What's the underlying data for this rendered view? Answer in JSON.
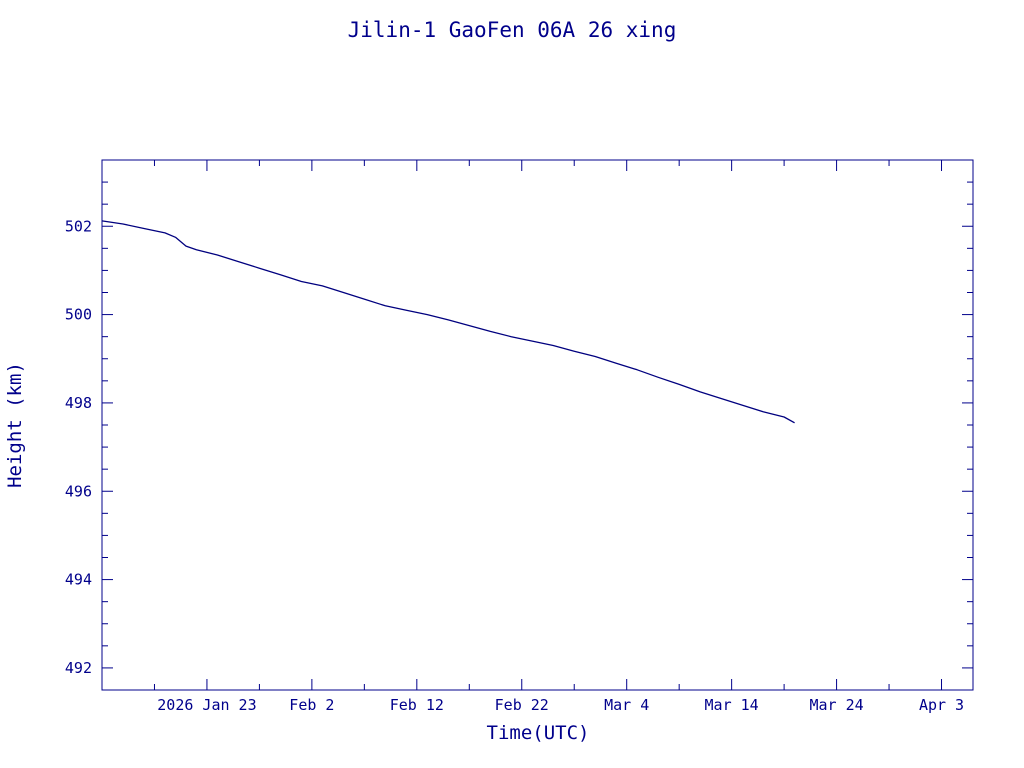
{
  "chart_data": {
    "type": "line",
    "title": "Jilin-1 GaoFen 06A 26 xing",
    "xlabel": "Time(UTC)",
    "ylabel": "Height (km)",
    "colors": {
      "line": "#00007f",
      "axis": "#00008b",
      "text": "#00008b"
    },
    "grid": false,
    "legend": "none",
    "xlim": [
      "2026-01-13",
      "2026-04-06"
    ],
    "ylim": [
      491.5,
      503.5
    ],
    "xticks": [
      {
        "date": "2026-01-23",
        "label": "2026 Jan 23"
      },
      {
        "date": "2026-02-02",
        "label": "Feb  2"
      },
      {
        "date": "2026-02-12",
        "label": "Feb 12"
      },
      {
        "date": "2026-02-22",
        "label": "Feb 22"
      },
      {
        "date": "2026-03-04",
        "label": "Mar  4"
      },
      {
        "date": "2026-03-14",
        "label": "Mar 14"
      },
      {
        "date": "2026-03-24",
        "label": "Mar 24"
      },
      {
        "date": "2026-04-03",
        "label": "Apr  3"
      }
    ],
    "x_minor_step_days": 5,
    "yticks": [
      492,
      494,
      496,
      498,
      500,
      502
    ],
    "y_minor_step": 0.5,
    "series": [
      {
        "x": [
          "2026-01-13",
          "2026-01-15",
          "2026-01-17",
          "2026-01-19",
          "2026-01-20",
          "2026-01-21",
          "2026-01-22",
          "2026-01-24",
          "2026-01-26",
          "2026-01-28",
          "2026-01-30",
          "2026-02-01",
          "2026-02-03",
          "2026-02-05",
          "2026-02-07",
          "2026-02-09",
          "2026-02-11",
          "2026-02-13",
          "2026-02-15",
          "2026-02-17",
          "2026-02-19",
          "2026-02-21",
          "2026-02-23",
          "2026-02-25",
          "2026-02-27",
          "2026-03-01",
          "2026-03-03",
          "2026-03-05",
          "2026-03-07",
          "2026-03-09",
          "2026-03-11",
          "2026-03-13",
          "2026-03-15",
          "2026-03-17",
          "2026-03-19",
          "2026-03-20"
        ],
        "y": [
          502.12,
          502.05,
          501.95,
          501.85,
          501.75,
          501.55,
          501.47,
          501.35,
          501.2,
          501.05,
          500.9,
          500.75,
          500.65,
          500.5,
          500.35,
          500.2,
          500.1,
          500.0,
          499.88,
          499.75,
          499.62,
          499.5,
          499.4,
          499.3,
          499.17,
          499.05,
          498.9,
          498.75,
          498.58,
          498.42,
          498.25,
          498.1,
          497.95,
          497.8,
          497.68,
          497.55
        ]
      }
    ]
  }
}
